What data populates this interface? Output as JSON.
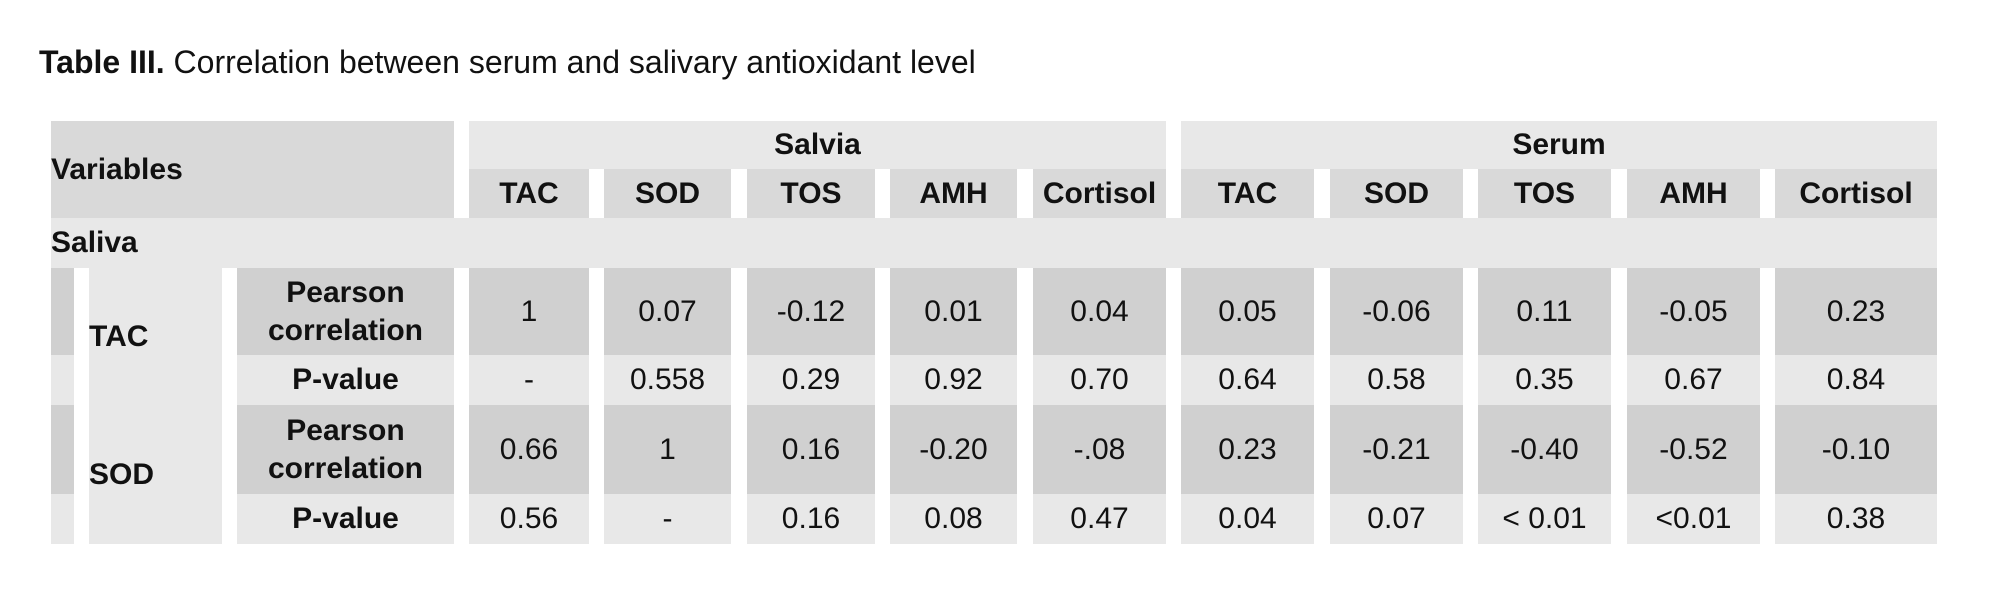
{
  "caption": {
    "label": "Table III.",
    "text": "Correlation between serum and salivary antioxidant level"
  },
  "header": {
    "variables": "Variables",
    "group_saliva": "Salvia",
    "group_serum": "Serum",
    "columns": [
      "TAC",
      "SOD",
      "TOS",
      "AMH",
      "Cortisol",
      "TAC",
      "SOD",
      "TOS",
      "AMH",
      "Cortisol"
    ]
  },
  "section": {
    "label": "Saliva"
  },
  "groups": [
    {
      "variable": "TAC",
      "rows": [
        {
          "label_line1": "Pearson",
          "label_line2": "correlation",
          "values": [
            "1",
            "0.07",
            "-0.12",
            "0.01",
            "0.04",
            "0.05",
            "-0.06",
            "0.11",
            "-0.05",
            "0.23"
          ]
        },
        {
          "label_line1": "P-value",
          "label_line2": "",
          "values": [
            "-",
            "0.558",
            "0.29",
            "0.92",
            "0.70",
            "0.64",
            "0.58",
            "0.35",
            "0.67",
            "0.84"
          ]
        }
      ]
    },
    {
      "variable": "SOD",
      "rows": [
        {
          "label_line1": "Pearson",
          "label_line2": "correlation",
          "values": [
            "0.66",
            "1",
            "0.16",
            "-0.20",
            "-.08",
            "0.23",
            "-0.21",
            "-0.40",
            "-0.52",
            "-0.10"
          ]
        },
        {
          "label_line1": "P-value",
          "label_line2": "",
          "values": [
            "0.56",
            "-",
            "0.16",
            "0.08",
            "0.47",
            "0.04",
            "0.07",
            "< 0.01",
            "<0.01",
            "0.38"
          ]
        }
      ]
    }
  ]
}
